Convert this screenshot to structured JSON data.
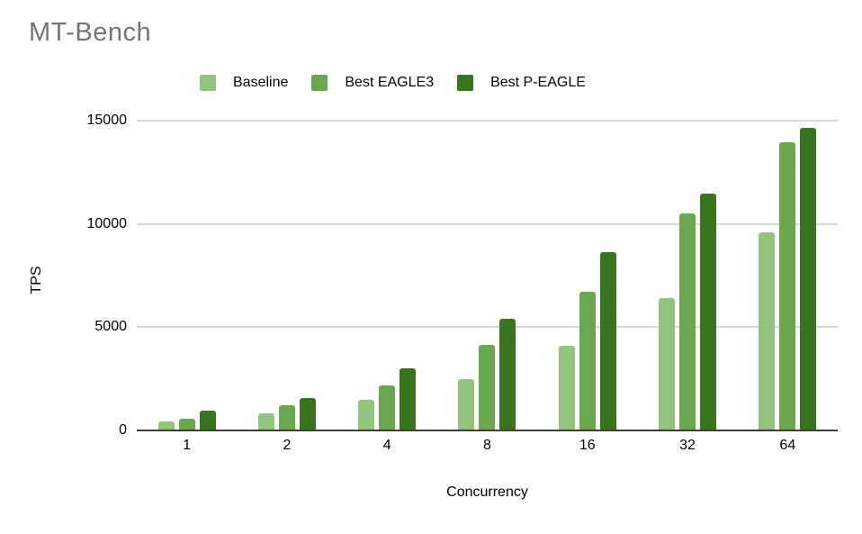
{
  "chart_data": {
    "type": "bar",
    "title": "MT-Bench",
    "xlabel": "Concurrency",
    "ylabel": "TPS",
    "categories": [
      "1",
      "2",
      "4",
      "8",
      "16",
      "32",
      "64"
    ],
    "series": [
      {
        "name": "Baseline",
        "color": "#93c47d",
        "values": [
          420,
          810,
          1500,
          2500,
          4100,
          6400,
          9600
        ]
      },
      {
        "name": "Best EAGLE3",
        "color": "#6aa84f",
        "values": [
          580,
          1200,
          2200,
          4150,
          6700,
          10500,
          13950
        ]
      },
      {
        "name": "Best P-EAGLE",
        "color": "#38761d",
        "values": [
          960,
          1560,
          3000,
          5400,
          8650,
          11450,
          14650
        ]
      }
    ],
    "ylim": [
      0,
      15000
    ],
    "yticks": [
      0,
      5000,
      10000,
      15000
    ],
    "grid": true,
    "legend_position": "top"
  },
  "style": {
    "title_color": "#757575",
    "gridline_color": "#d9d9d9",
    "axis_color": "#3f3f3f",
    "text_color": "#000000",
    "background": "#ffffff"
  }
}
